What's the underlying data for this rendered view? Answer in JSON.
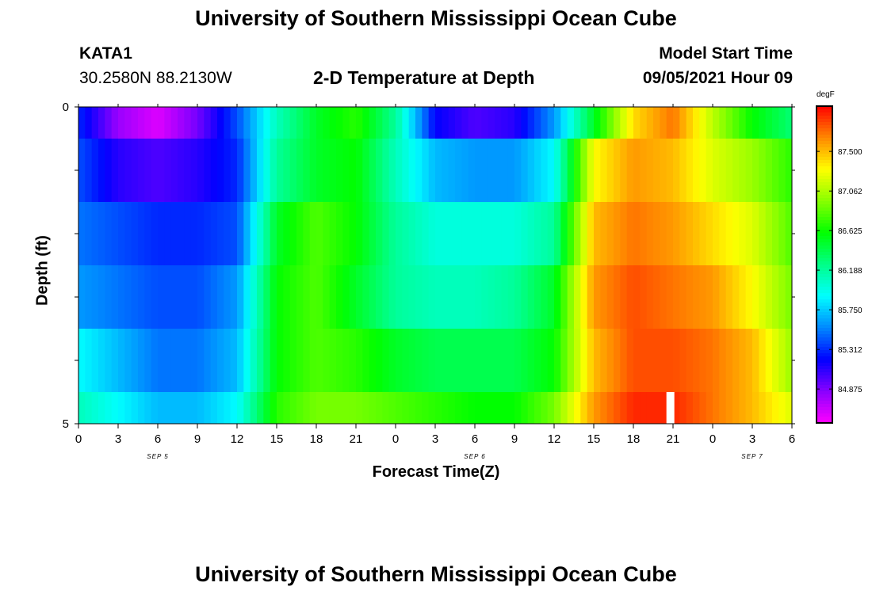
{
  "header": {
    "title": "University of Southern Mississippi Ocean Cube",
    "station_id": "KATA1",
    "coordinates": "30.2580N  88.2130W",
    "plot_title": "2-D Temperature at Depth",
    "model_start_label": "Model Start Time",
    "model_start_value": "09/05/2021 Hour 09"
  },
  "footer": {
    "title": "University of Southern Mississippi Ocean Cube"
  },
  "chart_data": {
    "type": "heatmap",
    "xlabel": "Forecast Time(Z)",
    "ylabel": "Depth (ft)",
    "ylim": [
      0,
      5
    ],
    "y_ticks": [
      "0",
      "5"
    ],
    "x_tick_labels": [
      "0",
      "3",
      "6",
      "9",
      "12",
      "15",
      "18",
      "21",
      "0",
      "3",
      "6",
      "9",
      "12",
      "15",
      "18",
      "21",
      "0",
      "3",
      "6"
    ],
    "date_labels": [
      {
        "label": "SEP 5",
        "at_index": 2
      },
      {
        "label": "SEP 6",
        "at_index": 10
      },
      {
        "label": "SEP 7",
        "at_index": 17
      }
    ],
    "colorbar": {
      "unit": "degF",
      "min": 84.5,
      "max": 88.0,
      "tick_labels": [
        "84.875",
        "85.312",
        "85.750",
        "86.188",
        "86.625",
        "87.062",
        "87.500"
      ],
      "colors": [
        "#ff00ff",
        "#8800ff",
        "#0000ff",
        "#0088ff",
        "#00ffff",
        "#00ff88",
        "#00ff00",
        "#88ff00",
        "#ffff00",
        "#ff8800",
        "#ff0000"
      ]
    },
    "rows_depth_bands": [
      "0-0.5",
      "0.5-1.5",
      "1.5-2.5",
      "2.5-3.5",
      "3.5-4.5",
      "4.5-5"
    ],
    "hours_x": [
      0,
      3,
      6,
      9,
      12,
      15,
      18,
      21,
      24,
      27,
      30,
      33,
      36,
      39,
      42,
      45,
      48,
      51,
      54
    ],
    "values": [
      [
        85.3,
        84.8,
        84.6,
        84.9,
        85.4,
        86.1,
        86.5,
        86.7,
        86.2,
        85.2,
        85.0,
        85.1,
        85.6,
        86.5,
        87.4,
        87.7,
        87.1,
        86.6,
        86.3
      ],
      [
        85.4,
        85.1,
        85.0,
        85.1,
        85.3,
        86.2,
        86.5,
        86.6,
        86.1,
        85.7,
        85.6,
        85.6,
        85.9,
        87.3,
        87.6,
        87.5,
        87.2,
        87.0,
        86.7
      ],
      [
        85.5,
        85.4,
        85.3,
        85.3,
        85.4,
        86.5,
        86.8,
        86.6,
        86.2,
        86.0,
        86.0,
        86.0,
        86.2,
        87.5,
        87.7,
        87.6,
        87.4,
        87.2,
        86.8
      ],
      [
        85.6,
        85.5,
        85.4,
        85.4,
        85.6,
        86.6,
        86.8,
        86.5,
        86.2,
        86.1,
        86.1,
        86.2,
        86.5,
        87.6,
        87.8,
        87.7,
        87.6,
        87.3,
        86.9
      ],
      [
        85.9,
        85.7,
        85.5,
        85.5,
        85.7,
        86.6,
        86.8,
        86.7,
        86.5,
        86.4,
        86.4,
        86.4,
        86.6,
        87.5,
        87.8,
        87.8,
        87.7,
        87.5,
        87.0
      ],
      [
        86.1,
        85.9,
        85.7,
        85.7,
        85.9,
        86.7,
        86.9,
        86.9,
        86.8,
        86.7,
        86.6,
        86.6,
        86.9,
        87.6,
        87.9,
        87.9,
        87.7,
        87.5,
        87.2
      ]
    ],
    "missing_cell": {
      "row": 5,
      "hour": 44.5
    },
    "grid": false
  }
}
